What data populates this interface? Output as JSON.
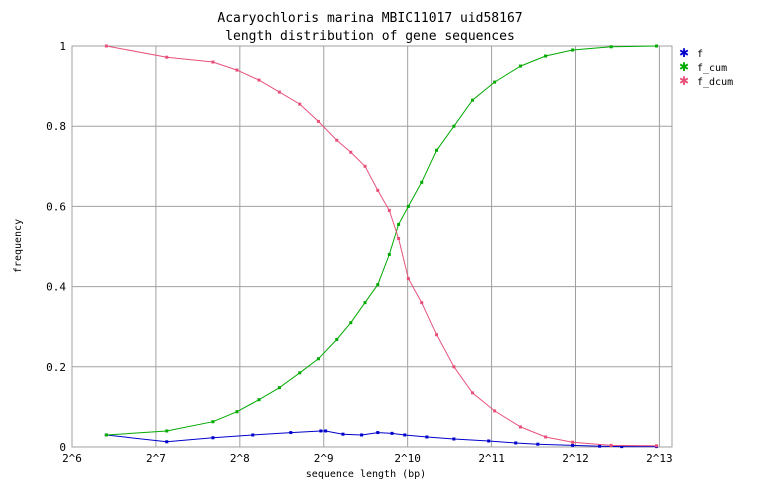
{
  "chart_data": {
    "type": "line",
    "title": "Acaryochloris marina MBIC11017 uid58167",
    "subtitle": "length distribution of gene sequences",
    "xlabel": "sequence length (bp)",
    "ylabel": "frequency",
    "x_scale": "log2",
    "xlim": [
      64,
      9000
    ],
    "ylim": [
      0,
      1
    ],
    "grid": true,
    "legend_position": "right",
    "x_ticks": [
      "2^6",
      "2^7",
      "2^8",
      "2^9",
      "2^10",
      "2^11",
      "2^12",
      "2^13"
    ],
    "y_ticks": [
      "0",
      "0.2",
      "0.4",
      "0.6",
      "0.8",
      "1"
    ],
    "series": [
      {
        "name": "f",
        "color": "#0000cc",
        "x": [
          85,
          140,
          205,
          285,
          390,
          500,
          520,
          600,
          700,
          800,
          900,
          1000,
          1200,
          1500,
          2000,
          2500,
          3000,
          4000,
          5000,
          6000,
          8000
        ],
        "values": [
          0.03,
          0.013,
          0.023,
          0.03,
          0.036,
          0.04,
          0.04,
          0.032,
          0.03,
          0.036,
          0.034,
          0.03,
          0.025,
          0.02,
          0.015,
          0.01,
          0.007,
          0.004,
          0.002,
          0.001,
          0.001
        ]
      },
      {
        "name": "f_cum",
        "color": "#00aa00",
        "x": [
          85,
          140,
          205,
          250,
          300,
          355,
          420,
          490,
          570,
          640,
          720,
          800,
          880,
          950,
          1030,
          1150,
          1300,
          1500,
          1750,
          2100,
          2600,
          3200,
          4000,
          5500,
          8000
        ],
        "values": [
          0.03,
          0.04,
          0.063,
          0.088,
          0.118,
          0.148,
          0.185,
          0.22,
          0.268,
          0.31,
          0.36,
          0.405,
          0.48,
          0.555,
          0.6,
          0.66,
          0.74,
          0.8,
          0.865,
          0.91,
          0.95,
          0.975,
          0.99,
          0.998,
          1.0
        ]
      },
      {
        "name": "f_dcum",
        "color": "#e8507a",
        "x": [
          85,
          140,
          205,
          250,
          300,
          355,
          420,
          490,
          570,
          640,
          720,
          800,
          880,
          950,
          1030,
          1150,
          1300,
          1500,
          1750,
          2100,
          2600,
          3200,
          4000,
          5500,
          8000
        ],
        "values": [
          1.0,
          0.972,
          0.96,
          0.94,
          0.915,
          0.885,
          0.855,
          0.812,
          0.765,
          0.735,
          0.7,
          0.64,
          0.59,
          0.52,
          0.42,
          0.36,
          0.28,
          0.2,
          0.135,
          0.09,
          0.05,
          0.025,
          0.012,
          0.004,
          0.003
        ]
      }
    ]
  }
}
